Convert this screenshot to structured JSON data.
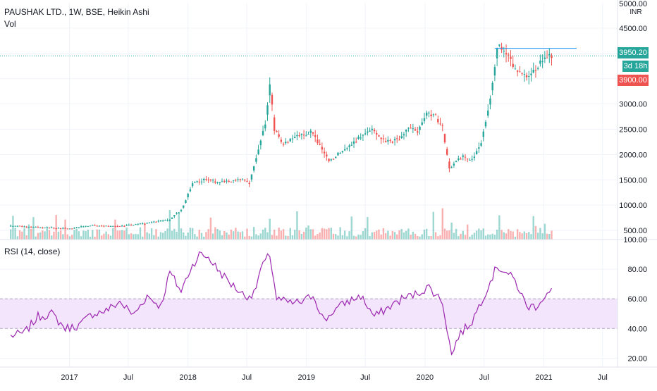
{
  "header": {
    "symbol_line": "PAUSHAK LTD., 1W, BSE, Heikin Ashi",
    "vol_label": "Vol",
    "rsi_label": "RSI (14, close)",
    "currency": "INR",
    "top_cut_label": "5000.00"
  },
  "price_tags": {
    "last_price": "3950.20",
    "countdown": "3d 18h",
    "open_price": "3900.00"
  },
  "colors": {
    "up": "#26a69a",
    "down": "#ef5350",
    "rsi_line": "#9c27b0",
    "rsi_band": "#f3e5fb",
    "hline": "#2196f3",
    "last_price_tag": "#26a69a",
    "countdown_tag": "#26a69a",
    "open_price_tag": "#ef5350"
  },
  "chart_data": [
    {
      "type": "candlestick",
      "title": "PAUSHAK LTD., 1W, BSE, Heikin Ashi",
      "x_ticks": [
        "2017",
        "Jul",
        "2018",
        "Jul",
        "2019",
        "Jul",
        "2020",
        "Jul",
        "2021",
        "Jul"
      ],
      "y_ticks": [
        500,
        1000,
        1500,
        2000,
        2500,
        3000,
        3500,
        4000,
        4500
      ],
      "y_tick_labels": [
        "500.00",
        "1000.00",
        "1500.00",
        "2000.00",
        "2500.00",
        "3000.00",
        "3500.00",
        "4000.00",
        "4500.00"
      ],
      "y_range": [
        320,
        5000
      ],
      "horizontal_line": 4100,
      "last_price": 3950.2,
      "weekly_close_keypoints": [
        [
          "2016-07-04",
          590
        ],
        [
          "2016-10-03",
          560
        ],
        [
          "2017-01-02",
          540
        ],
        [
          "2017-03-06",
          600
        ],
        [
          "2017-06-05",
          580
        ],
        [
          "2017-09-04",
          650
        ],
        [
          "2017-11-06",
          720
        ],
        [
          "2017-12-11",
          900
        ],
        [
          "2018-01-15",
          1420
        ],
        [
          "2018-02-19",
          1500
        ],
        [
          "2018-04-16",
          1450
        ],
        [
          "2018-06-11",
          1520
        ],
        [
          "2018-07-09",
          1430
        ],
        [
          "2018-08-06",
          2100
        ],
        [
          "2018-08-27",
          2600
        ],
        [
          "2018-09-10",
          3400
        ],
        [
          "2018-09-24",
          2500
        ],
        [
          "2018-10-22",
          2200
        ],
        [
          "2018-12-03",
          2350
        ],
        [
          "2019-01-14",
          2450
        ],
        [
          "2019-02-18",
          2100
        ],
        [
          "2019-03-11",
          1850
        ],
        [
          "2019-04-15",
          2050
        ],
        [
          "2019-05-20",
          2200
        ],
        [
          "2019-06-24",
          2400
        ],
        [
          "2019-07-22",
          2550
        ],
        [
          "2019-08-12",
          2350
        ],
        [
          "2019-09-09",
          2250
        ],
        [
          "2019-10-14",
          2300
        ],
        [
          "2019-11-11",
          2550
        ],
        [
          "2019-12-09",
          2450
        ],
        [
          "2020-01-06",
          2800
        ],
        [
          "2020-02-03",
          2750
        ],
        [
          "2020-02-24",
          2550
        ],
        [
          "2020-03-16",
          1700
        ],
        [
          "2020-03-30",
          1850
        ],
        [
          "2020-04-27",
          1950
        ],
        [
          "2020-05-25",
          1900
        ],
        [
          "2020-06-22",
          2250
        ],
        [
          "2020-07-13",
          2900
        ],
        [
          "2020-07-27",
          3400
        ],
        [
          "2020-08-10",
          4150
        ],
        [
          "2020-08-31",
          4100
        ],
        [
          "2020-09-14",
          3900
        ],
        [
          "2020-10-12",
          3650
        ],
        [
          "2020-11-09",
          3550
        ],
        [
          "2020-12-07",
          3700
        ],
        [
          "2020-12-28",
          3900
        ],
        [
          "2021-01-25",
          3950
        ]
      ],
      "volume_note": "weekly volume histogram, colored by candle direction"
    },
    {
      "type": "line",
      "title": "RSI (14, close)",
      "y_ticks": [
        20,
        40,
        60,
        80,
        100
      ],
      "y_tick_labels": [
        "20.00",
        "40.00",
        "60.00",
        "80.00",
        "100.00"
      ],
      "y_range": [
        14,
        100
      ],
      "band": [
        40,
        60
      ],
      "series": [
        {
          "values_keypoints": [
            [
              "2016-07-04",
              35
            ],
            [
              "2016-08-15",
              37
            ],
            [
              "2016-09-26",
              48
            ],
            [
              "2016-11-07",
              50
            ],
            [
              "2016-12-19",
              40
            ],
            [
              "2017-01-30",
              42
            ],
            [
              "2017-03-13",
              50
            ],
            [
              "2017-04-24",
              52
            ],
            [
              "2017-06-05",
              58
            ],
            [
              "2017-07-17",
              49
            ],
            [
              "2017-08-28",
              62
            ],
            [
              "2017-10-09",
              55
            ],
            [
              "2017-11-06",
              78
            ],
            [
              "2017-12-11",
              65
            ],
            [
              "2018-01-08",
              80
            ],
            [
              "2018-02-05",
              90
            ],
            [
              "2018-03-05",
              88
            ],
            [
              "2018-04-02",
              80
            ],
            [
              "2018-05-14",
              70
            ],
            [
              "2018-06-25",
              62
            ],
            [
              "2018-07-23",
              63
            ],
            [
              "2018-08-13",
              80
            ],
            [
              "2018-09-10",
              90
            ],
            [
              "2018-10-01",
              60
            ],
            [
              "2018-11-12",
              57
            ],
            [
              "2018-12-24",
              58
            ],
            [
              "2019-01-21",
              63
            ],
            [
              "2019-02-25",
              45
            ],
            [
              "2019-03-25",
              52
            ],
            [
              "2019-05-06",
              58
            ],
            [
              "2019-06-17",
              62
            ],
            [
              "2019-07-29",
              48
            ],
            [
              "2019-09-09",
              54
            ],
            [
              "2019-10-21",
              60
            ],
            [
              "2019-12-02",
              63
            ],
            [
              "2020-01-13",
              68
            ],
            [
              "2020-02-24",
              58
            ],
            [
              "2020-03-23",
              22
            ],
            [
              "2020-04-13",
              35
            ],
            [
              "2020-05-25",
              45
            ],
            [
              "2020-07-06",
              65
            ],
            [
              "2020-08-10",
              82
            ],
            [
              "2020-09-07",
              78
            ],
            [
              "2020-10-05",
              72
            ],
            [
              "2020-11-09",
              55
            ],
            [
              "2020-12-07",
              55
            ],
            [
              "2021-01-04",
              62
            ],
            [
              "2021-01-25",
              65
            ]
          ]
        }
      ]
    }
  ]
}
